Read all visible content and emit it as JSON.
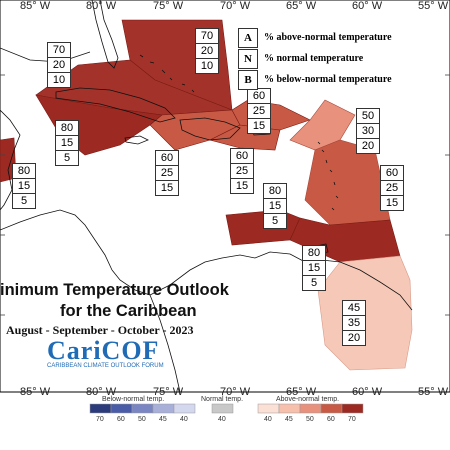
{
  "map": {
    "longitude_labels": [
      "85° W",
      "80° W",
      "75° W",
      "70° W",
      "65° W",
      "60° W",
      "55° W"
    ],
    "regions": [
      {
        "label_a": "70",
        "label_n": "20",
        "label_b": "10",
        "fill": "#a3332a"
      },
      {
        "label_a": "70",
        "label_n": "20",
        "label_b": "10",
        "fill": "#a3332a"
      },
      {
        "label_a": "80",
        "label_n": "15",
        "label_b": "5",
        "fill": "#9c2a22"
      },
      {
        "label_a": "80",
        "label_n": "15",
        "label_b": "5",
        "fill": "#9c2a22"
      },
      {
        "label_a": "60",
        "label_n": "25",
        "label_b": "15",
        "fill": "#c85a45"
      },
      {
        "label_a": "60",
        "label_n": "25",
        "label_b": "15",
        "fill": "#c85a45"
      },
      {
        "label_a": "60",
        "label_n": "25",
        "label_b": "15",
        "fill": "#c85a45"
      },
      {
        "label_a": "50",
        "label_n": "30",
        "label_b": "20",
        "fill": "#e8917c"
      },
      {
        "label_a": "60",
        "label_n": "25",
        "label_b": "15",
        "fill": "#c85a45"
      },
      {
        "label_a": "80",
        "label_n": "15",
        "label_b": "5",
        "fill": "#9c2a22"
      },
      {
        "label_a": "80",
        "label_n": "15",
        "label_b": "5",
        "fill": "#9c2a22"
      },
      {
        "label_a": "45",
        "label_n": "35",
        "label_b": "20",
        "fill": "#f6c8b8"
      }
    ]
  },
  "key": {
    "rows": [
      {
        "letter": "A",
        "text": "% above-normal temperature"
      },
      {
        "letter": "N",
        "text": "% normal temperature"
      },
      {
        "letter": "B",
        "text": "% below-normal temperature"
      }
    ]
  },
  "title": {
    "line1": "inimum Temperature Outlook",
    "line2": "for the Caribbean",
    "period": "August - September - October - 2023"
  },
  "logo": {
    "name": "CariCOF",
    "subtitle": "CARIBBEAN CLIMATE OUTLOOK FORUM"
  },
  "legend": {
    "below_title": "Below-normal temp.",
    "normal_title": "Normal temp.",
    "above_title": "Above-normal temp.",
    "below_ticks": [
      "70",
      "60",
      "50",
      "45",
      "40"
    ],
    "normal_ticks": [
      "40"
    ],
    "above_ticks": [
      "40",
      "45",
      "50",
      "60",
      "70"
    ],
    "below_colors": [
      "#2a3a7a",
      "#4a5ca8",
      "#7a86c4",
      "#a8b0da",
      "#d4d8ee"
    ],
    "normal_color": "#c8c8c8",
    "above_colors": [
      "#fbe0d6",
      "#f6c0ac",
      "#e8917c",
      "#c85a45",
      "#9c2a22"
    ]
  }
}
